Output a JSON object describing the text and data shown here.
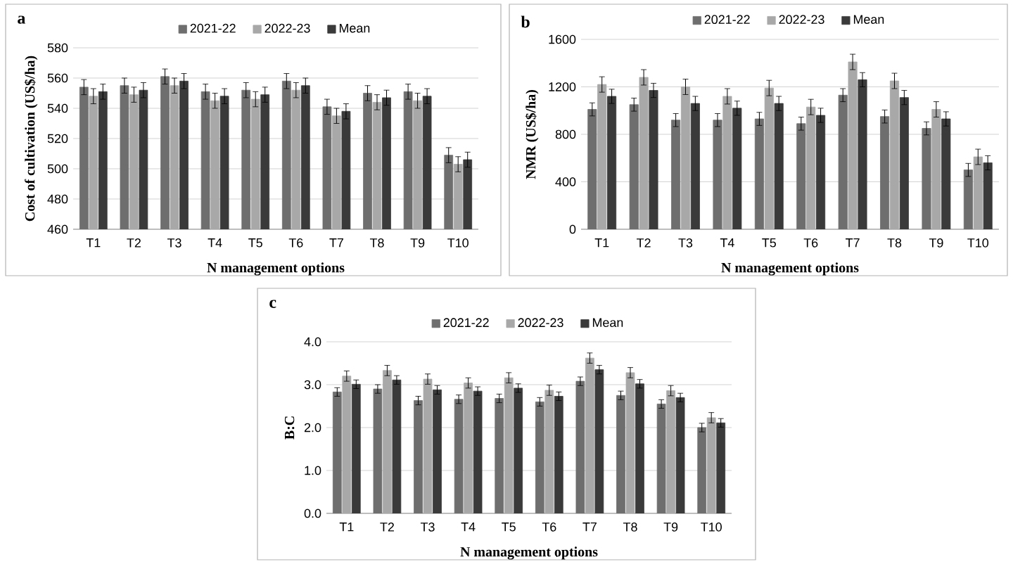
{
  "chart_data": [
    {
      "type": "bar",
      "annotations": [
        "a"
      ],
      "xlabel": "N management options",
      "ylabel": "Cost of cultivation (US$/ha)",
      "categories": [
        "T1",
        "T2",
        "T3",
        "T4",
        "T5",
        "T6",
        "T7",
        "T8",
        "T9",
        "T10"
      ],
      "ylim": [
        460,
        580
      ],
      "yticks": [
        460,
        480,
        500,
        520,
        540,
        560,
        580
      ],
      "grid": "y",
      "legend": "top",
      "series": [
        {
          "name": "2021-22",
          "color": "#6e6e6e",
          "values": [
            554,
            555,
            561,
            551,
            552,
            558,
            541,
            550,
            551,
            509
          ],
          "errors": [
            5,
            5,
            5,
            5,
            5,
            5,
            5,
            5,
            5,
            5
          ]
        },
        {
          "name": "2022-23",
          "color": "#a8a8a8",
          "values": [
            548,
            549,
            555,
            545,
            546,
            552,
            535,
            544,
            545,
            503
          ],
          "errors": [
            5,
            5,
            5,
            5,
            5,
            5,
            5,
            5,
            5,
            5
          ]
        },
        {
          "name": "Mean",
          "color": "#3a3a3a",
          "values": [
            551,
            552,
            558,
            548,
            549,
            555,
            538,
            547,
            548,
            506
          ],
          "errors": [
            5,
            5,
            5,
            5,
            5,
            5,
            5,
            5,
            5,
            5
          ]
        }
      ]
    },
    {
      "type": "bar",
      "annotations": [
        "b"
      ],
      "xlabel": "N management options",
      "ylabel": "NMR (US$/ha)",
      "categories": [
        "T1",
        "T2",
        "T3",
        "T4",
        "T5",
        "T6",
        "T7",
        "T8",
        "T9",
        "T10"
      ],
      "ylim": [
        0,
        1600
      ],
      "yticks": [
        0,
        400,
        800,
        1200,
        1600
      ],
      "grid": "y",
      "legend": "top",
      "series": [
        {
          "name": "2021-22",
          "color": "#6e6e6e",
          "values": [
            1010,
            1050,
            920,
            920,
            930,
            890,
            1130,
            950,
            850,
            500
          ],
          "errors": [
            55,
            55,
            55,
            55,
            55,
            55,
            55,
            55,
            55,
            55
          ]
        },
        {
          "name": "2022-23",
          "color": "#a8a8a8",
          "values": [
            1220,
            1280,
            1200,
            1120,
            1190,
            1030,
            1410,
            1250,
            1010,
            610
          ],
          "errors": [
            65,
            65,
            65,
            65,
            65,
            65,
            65,
            65,
            65,
            65
          ]
        },
        {
          "name": "Mean",
          "color": "#3a3a3a",
          "values": [
            1120,
            1170,
            1060,
            1020,
            1060,
            960,
            1260,
            1110,
            930,
            560
          ],
          "errors": [
            60,
            60,
            60,
            60,
            60,
            60,
            60,
            60,
            60,
            60
          ]
        }
      ]
    },
    {
      "type": "bar",
      "annotations": [
        "c"
      ],
      "xlabel": "N management options",
      "ylabel": "B:C",
      "categories": [
        "T1",
        "T2",
        "T3",
        "T4",
        "T5",
        "T6",
        "T7",
        "T8",
        "T9",
        "T10"
      ],
      "ylim": [
        0,
        4
      ],
      "yticks": [
        {
          "value": 0,
          "label": "0.0"
        },
        {
          "value": 1,
          "label": "1.0"
        },
        {
          "value": 2,
          "label": "2.0"
        },
        {
          "value": 3,
          "label": "3.0"
        },
        {
          "value": 4,
          "label": "4.0"
        }
      ],
      "grid": "y",
      "legend": "top",
      "series": [
        {
          "name": "2021-22",
          "color": "#6e6e6e",
          "values": [
            2.83,
            2.9,
            2.63,
            2.66,
            2.68,
            2.6,
            3.08,
            2.75,
            2.55,
            2.0
          ],
          "errors": [
            0.1,
            0.1,
            0.1,
            0.1,
            0.1,
            0.1,
            0.1,
            0.1,
            0.1,
            0.1
          ]
        },
        {
          "name": "2022-23",
          "color": "#a8a8a8",
          "values": [
            3.2,
            3.33,
            3.13,
            3.04,
            3.16,
            2.87,
            3.62,
            3.28,
            2.86,
            2.23
          ],
          "errors": [
            0.12,
            0.12,
            0.12,
            0.12,
            0.12,
            0.12,
            0.12,
            0.12,
            0.12,
            0.12
          ]
        },
        {
          "name": "Mean",
          "color": "#3a3a3a",
          "values": [
            3.01,
            3.11,
            2.88,
            2.85,
            2.92,
            2.73,
            3.35,
            3.02,
            2.7,
            2.11
          ],
          "errors": [
            0.1,
            0.1,
            0.1,
            0.1,
            0.1,
            0.1,
            0.1,
            0.1,
            0.1,
            0.1
          ]
        }
      ]
    }
  ]
}
